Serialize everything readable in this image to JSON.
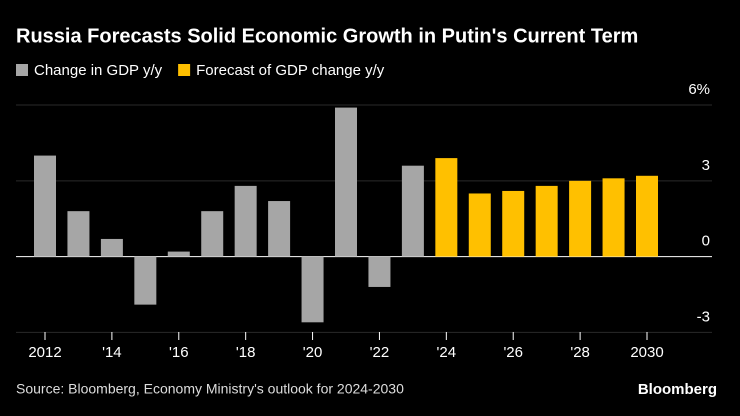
{
  "chart_data": {
    "type": "bar",
    "title": "Russia Forecasts Solid Economic Growth in Putin's Current Term",
    "source": "Source: Bloomberg, Economy Ministry's outlook for 2024-2030",
    "logo": "Bloomberg",
    "categories": [
      "2012",
      null,
      "'14",
      null,
      "'16",
      null,
      "'18",
      null,
      "'20",
      null,
      "'22",
      null,
      "'24",
      null,
      "'26",
      null,
      "'28",
      null,
      "2030"
    ],
    "series": [
      {
        "name": "Change in GDP y/y",
        "color": "#a6a6a6",
        "values": [
          4.0,
          1.8,
          0.7,
          -1.9,
          0.2,
          1.8,
          2.8,
          2.2,
          -2.6,
          5.9,
          -1.2,
          3.6,
          null,
          null,
          null,
          null,
          null,
          null,
          null
        ]
      },
      {
        "name": "Forecast of GDP change y/y",
        "color": "#ffc000",
        "values": [
          null,
          null,
          null,
          null,
          null,
          null,
          null,
          null,
          null,
          null,
          null,
          null,
          3.9,
          2.5,
          2.6,
          2.8,
          3.0,
          3.1,
          3.2
        ]
      }
    ],
    "ylim": [
      -3.3,
      6.2
    ],
    "yticks": [
      {
        "value": 6,
        "label": "6%"
      },
      3,
      0,
      -3
    ],
    "grid": true
  }
}
